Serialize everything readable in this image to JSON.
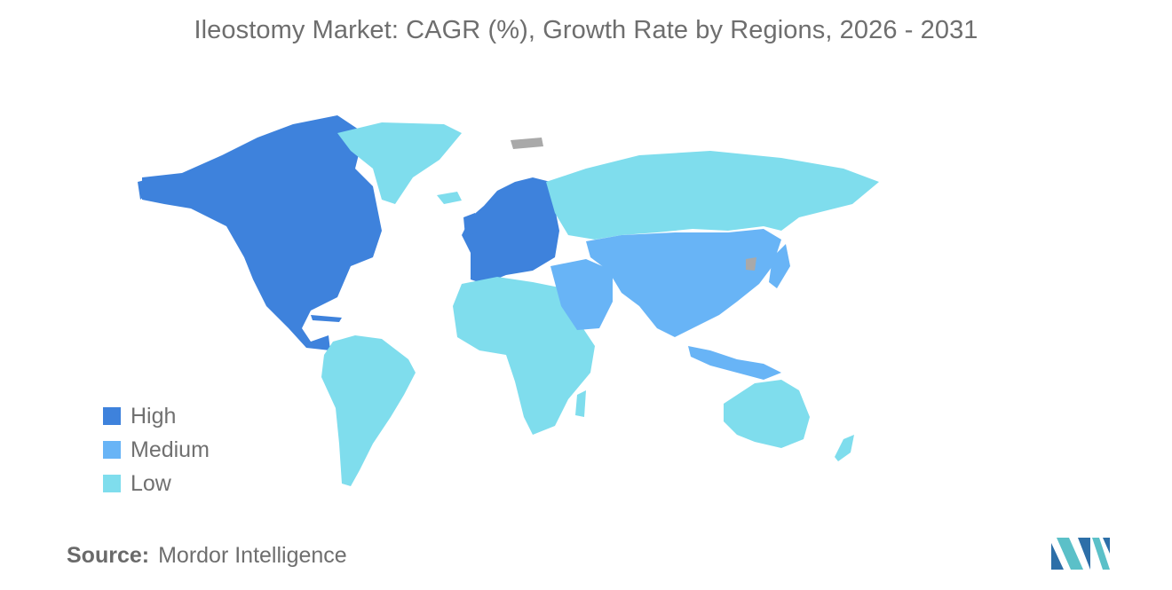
{
  "title": "Ileostomy Market: CAGR (%), Growth Rate by Regions, 2026 - 2031",
  "legend": {
    "items": [
      {
        "label": "High",
        "color": "#3e82dc"
      },
      {
        "label": "Medium",
        "color": "#68b4f6"
      },
      {
        "label": "Low",
        "color": "#7fdded"
      }
    ]
  },
  "source": {
    "label": "Source:",
    "value": "Mordor Intelligence"
  },
  "map": {
    "no_data_color": "#a9a9a9",
    "regions": [
      {
        "name": "North America",
        "level": "High"
      },
      {
        "name": "Europe",
        "level": "High"
      },
      {
        "name": "Asia-Pacific",
        "level": "Medium"
      },
      {
        "name": "Middle East",
        "level": "Medium"
      },
      {
        "name": "Latin America",
        "level": "Low"
      },
      {
        "name": "Africa",
        "level": "Low"
      },
      {
        "name": "Russia",
        "level": "Low"
      },
      {
        "name": "Greenland",
        "level": "Low"
      },
      {
        "name": "Australia",
        "level": "Low"
      }
    ]
  },
  "logo": {
    "icon": "mordor-intelligence-logo-icon"
  }
}
